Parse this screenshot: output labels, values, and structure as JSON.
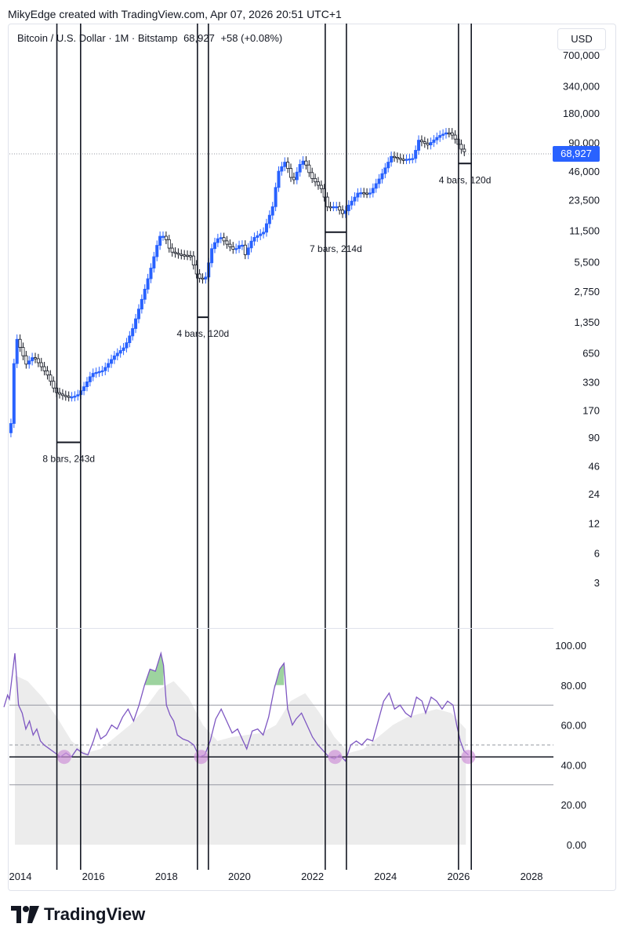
{
  "header": {
    "caption": "MikyEdge created with TradingView.com, Apr 07, 2026 20:51 UTC+1"
  },
  "symbol": {
    "name": "Bitcoin / U.S. Dollar · 1M · Bitstamp",
    "price": "68,927",
    "change": "+58 (+0.08%)"
  },
  "currency_button": "USD",
  "last_price_label": "68,927",
  "footer": {
    "brand": "TradingView",
    "logo_icon": "tradingview-logo-icon"
  },
  "colors": {
    "up": "#2962ff",
    "down": "#131722",
    "rsi_line": "#7e57c2",
    "rsi_band": "#e6e6e6",
    "highlight": "#ce93d8",
    "overbought_fill": "#4caf50"
  },
  "chart_data": [
    {
      "type": "candlestick",
      "scale": "log",
      "ylim": [
        3,
        700000
      ],
      "y_ticks": [
        700000,
        340000,
        180000,
        90000,
        46000,
        23500,
        11500,
        5500,
        2750,
        1350,
        650,
        330,
        170,
        90,
        46,
        24,
        12,
        6,
        3
      ],
      "y_tick_labels": [
        "700,000",
        "340,000",
        "180,000",
        "90,000",
        "46,000",
        "23,500",
        "11,500",
        "5,500",
        "2,750",
        "1,350",
        "650",
        "330",
        "170",
        "90",
        "46",
        "24",
        "12",
        "6",
        "3"
      ],
      "x_ticks": [
        "2014",
        "2016",
        "2018",
        "2020",
        "2022",
        "2024",
        "2026",
        "2028"
      ],
      "xlim": [
        2013.7,
        2028.6
      ],
      "path": [
        [
          2013.7,
          100
        ],
        [
          2013.8,
          130
        ],
        [
          2013.9,
          1000
        ],
        [
          2014.0,
          800
        ],
        [
          2014.2,
          500
        ],
        [
          2014.4,
          600
        ],
        [
          2014.6,
          480
        ],
        [
          2014.8,
          380
        ],
        [
          2015.0,
          260
        ],
        [
          2015.2,
          240
        ],
        [
          2015.4,
          230
        ],
        [
          2015.6,
          240
        ],
        [
          2015.8,
          300
        ],
        [
          2016.0,
          400
        ],
        [
          2016.3,
          430
        ],
        [
          2016.6,
          600
        ],
        [
          2016.9,
          750
        ],
        [
          2017.1,
          1100
        ],
        [
          2017.4,
          2500
        ],
        [
          2017.6,
          4500
        ],
        [
          2017.85,
          10000
        ],
        [
          2018.0,
          10000
        ],
        [
          2018.15,
          7000
        ],
        [
          2018.4,
          6500
        ],
        [
          2018.7,
          6300
        ],
        [
          2018.9,
          3800
        ],
        [
          2019.1,
          3600
        ],
        [
          2019.3,
          8000
        ],
        [
          2019.5,
          10000
        ],
        [
          2019.7,
          8300
        ],
        [
          2019.9,
          7200
        ],
        [
          2020.1,
          8500
        ],
        [
          2020.2,
          6500
        ],
        [
          2020.4,
          9500
        ],
        [
          2020.7,
          11000
        ],
        [
          2020.95,
          20000
        ],
        [
          2021.1,
          45000
        ],
        [
          2021.3,
          58000
        ],
        [
          2021.5,
          35000
        ],
        [
          2021.75,
          60000
        ],
        [
          2021.85,
          55000
        ],
        [
          2022.0,
          40000
        ],
        [
          2022.3,
          30000
        ],
        [
          2022.45,
          20000
        ],
        [
          2022.7,
          20000
        ],
        [
          2022.9,
          16500
        ],
        [
          2023.0,
          20000
        ],
        [
          2023.3,
          28000
        ],
        [
          2023.6,
          27000
        ],
        [
          2023.9,
          40000
        ],
        [
          2024.2,
          65000
        ],
        [
          2024.5,
          60000
        ],
        [
          2024.8,
          62000
        ],
        [
          2024.95,
          95000
        ],
        [
          2025.2,
          85000
        ],
        [
          2025.5,
          105000
        ],
        [
          2025.75,
          115000
        ],
        [
          2025.9,
          105000
        ],
        [
          2026.1,
          78000
        ],
        [
          2026.27,
          68927
        ]
      ],
      "last_price": 68927
    },
    {
      "type": "line",
      "title": "",
      "ylim": [
        0,
        100
      ],
      "y_ticks": [
        100,
        80,
        60,
        40,
        20,
        0
      ],
      "y_tick_labels": [
        "100.00",
        "80.00",
        "60.00",
        "40.00",
        "20.00",
        "0.00"
      ],
      "levels": [
        70,
        50,
        44,
        30
      ],
      "series": [
        {
          "values": [
            [
              2013.55,
              69
            ],
            [
              2013.65,
              75
            ],
            [
              2013.7,
              73
            ],
            [
              2013.85,
              96
            ],
            [
              2013.95,
              70
            ],
            [
              2014.05,
              66
            ],
            [
              2014.15,
              58
            ],
            [
              2014.25,
              62
            ],
            [
              2014.35,
              55
            ],
            [
              2014.45,
              58
            ],
            [
              2014.55,
              52
            ],
            [
              2014.65,
              50
            ],
            [
              2014.8,
              48
            ],
            [
              2014.95,
              46
            ],
            [
              2015.1,
              44
            ],
            [
              2015.25,
              46
            ],
            [
              2015.4,
              44
            ],
            [
              2015.55,
              48
            ],
            [
              2015.7,
              46
            ],
            [
              2015.85,
              45
            ],
            [
              2016.0,
              52
            ],
            [
              2016.1,
              58
            ],
            [
              2016.2,
              53
            ],
            [
              2016.35,
              55
            ],
            [
              2016.5,
              60
            ],
            [
              2016.65,
              58
            ],
            [
              2016.8,
              64
            ],
            [
              2016.95,
              68
            ],
            [
              2017.1,
              62
            ],
            [
              2017.25,
              70
            ],
            [
              2017.4,
              80
            ],
            [
              2017.55,
              88
            ],
            [
              2017.7,
              87
            ],
            [
              2017.85,
              96
            ],
            [
              2017.92,
              90
            ],
            [
              2018.0,
              70
            ],
            [
              2018.1,
              65
            ],
            [
              2018.2,
              62
            ],
            [
              2018.3,
              55
            ],
            [
              2018.45,
              53
            ],
            [
              2018.6,
              52
            ],
            [
              2018.75,
              50
            ],
            [
              2018.9,
              44
            ],
            [
              2019.05,
              45
            ],
            [
              2019.2,
              52
            ],
            [
              2019.35,
              63
            ],
            [
              2019.5,
              68
            ],
            [
              2019.65,
              62
            ],
            [
              2019.8,
              56
            ],
            [
              2019.95,
              58
            ],
            [
              2020.1,
              52
            ],
            [
              2020.2,
              48
            ],
            [
              2020.35,
              57
            ],
            [
              2020.5,
              58
            ],
            [
              2020.65,
              55
            ],
            [
              2020.8,
              64
            ],
            [
              2020.95,
              78
            ],
            [
              2021.1,
              88
            ],
            [
              2021.22,
              91
            ],
            [
              2021.32,
              68
            ],
            [
              2021.45,
              60
            ],
            [
              2021.55,
              63
            ],
            [
              2021.7,
              66
            ],
            [
              2021.85,
              60
            ],
            [
              2022.0,
              54
            ],
            [
              2022.15,
              50
            ],
            [
              2022.3,
              47
            ],
            [
              2022.45,
              44
            ],
            [
              2022.6,
              43
            ],
            [
              2022.75,
              45
            ],
            [
              2022.9,
              42
            ],
            [
              2023.05,
              50
            ],
            [
              2023.2,
              52
            ],
            [
              2023.35,
              50
            ],
            [
              2023.5,
              53
            ],
            [
              2023.65,
              52
            ],
            [
              2023.8,
              62
            ],
            [
              2023.95,
              72
            ],
            [
              2024.1,
              76
            ],
            [
              2024.25,
              68
            ],
            [
              2024.4,
              70
            ],
            [
              2024.55,
              66
            ],
            [
              2024.7,
              64
            ],
            [
              2024.85,
              74
            ],
            [
              2025.0,
              72
            ],
            [
              2025.1,
              66
            ],
            [
              2025.25,
              74
            ],
            [
              2025.4,
              72
            ],
            [
              2025.55,
              68
            ],
            [
              2025.7,
              72
            ],
            [
              2025.85,
              70
            ],
            [
              2025.95,
              60
            ],
            [
              2026.05,
              52
            ],
            [
              2026.15,
              47
            ],
            [
              2026.27,
              45
            ]
          ]
        },
        {
          "values": [
            [
              2013.85,
              85
            ],
            [
              2014.2,
              82
            ],
            [
              2014.6,
              74
            ],
            [
              2015.0,
              64
            ],
            [
              2015.4,
              52
            ],
            [
              2015.8,
              46
            ],
            [
              2016.2,
              48
            ],
            [
              2016.6,
              54
            ],
            [
              2017.0,
              60
            ],
            [
              2017.4,
              68
            ],
            [
              2017.8,
              78
            ],
            [
              2018.2,
              82
            ],
            [
              2018.6,
              74
            ],
            [
              2019.0,
              60
            ],
            [
              2019.4,
              52
            ],
            [
              2019.8,
              54
            ],
            [
              2020.2,
              55
            ],
            [
              2020.6,
              56
            ],
            [
              2021.0,
              60
            ],
            [
              2021.4,
              72
            ],
            [
              2021.8,
              76
            ],
            [
              2022.2,
              66
            ],
            [
              2022.6,
              54
            ],
            [
              2023.0,
              46
            ],
            [
              2023.4,
              48
            ],
            [
              2023.8,
              54
            ],
            [
              2024.2,
              60
            ],
            [
              2024.6,
              64
            ],
            [
              2025.0,
              66
            ],
            [
              2025.4,
              68
            ],
            [
              2025.8,
              66
            ],
            [
              2026.2,
              58
            ]
          ]
        }
      ],
      "highlights": [
        2015.2,
        2018.95,
        2022.62,
        2026.27
      ]
    }
  ],
  "annotations": [
    {
      "x1": 2015.0,
      "x2": 2015.65,
      "y": 80,
      "label": "8 bars, 243d"
    },
    {
      "x1": 2018.85,
      "x2": 2019.15,
      "y": 1500,
      "label": "4 bars, 120d"
    },
    {
      "x1": 2022.35,
      "x2": 2022.93,
      "y": 11000,
      "label": "7 bars, 214d"
    },
    {
      "x1": 2026.0,
      "x2": 2026.35,
      "y": 55000,
      "label": "4 bars, 120d"
    }
  ],
  "vertical_lines": [
    2015.0,
    2015.65,
    2018.85,
    2019.15,
    2022.35,
    2022.93,
    2026.0,
    2026.35
  ]
}
